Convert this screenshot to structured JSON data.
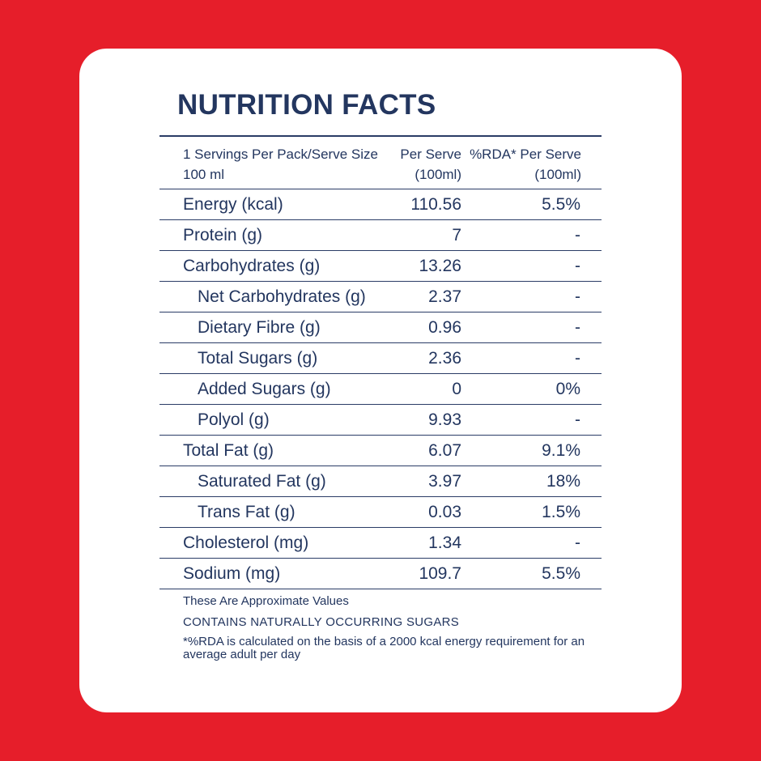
{
  "title": "NUTRITION FACTS",
  "header": {
    "serving": "1 Servings Per Pack/Serve Size 100 ml",
    "per_serve": "Per Serve (100ml)",
    "rda": "%RDA* Per Serve (100ml)"
  },
  "rows": [
    {
      "label": "Energy (kcal)",
      "value": "110.56",
      "rda": "5.5%",
      "indent": false
    },
    {
      "label": "Protein (g)",
      "value": "7",
      "rda": "-",
      "indent": false
    },
    {
      "label": "Carbohydrates (g)",
      "value": "13.26",
      "rda": "-",
      "indent": false
    },
    {
      "label": "Net Carbohydrates (g)",
      "value": "2.37",
      "rda": "-",
      "indent": true
    },
    {
      "label": "Dietary Fibre (g)",
      "value": "0.96",
      "rda": "-",
      "indent": true
    },
    {
      "label": "Total Sugars (g)",
      "value": "2.36",
      "rda": "-",
      "indent": true
    },
    {
      "label": "Added Sugars (g)",
      "value": "0",
      "rda": "0%",
      "indent": true
    },
    {
      "label": "Polyol (g)",
      "value": "9.93",
      "rda": "-",
      "indent": true
    },
    {
      "label": "Total Fat (g)",
      "value": "6.07",
      "rda": "9.1%",
      "indent": false
    },
    {
      "label": "Saturated Fat (g)",
      "value": "3.97",
      "rda": "18%",
      "indent": true
    },
    {
      "label": "Trans Fat (g)",
      "value": "0.03",
      "rda": "1.5%",
      "indent": true
    },
    {
      "label": "Cholesterol (mg)",
      "value": "1.34",
      "rda": "-",
      "indent": false
    },
    {
      "label": "Sodium (mg)",
      "value": "109.7",
      "rda": "5.5%",
      "indent": false
    }
  ],
  "notes": {
    "approx": "These Are Approximate Values",
    "sugars": "CONTAINS NATURALLY OCCURRING SUGARS",
    "rda_note": "*%RDA is calculated on the basis of a 2000 kcal energy requirement for an average adult per day"
  },
  "colors": {
    "background": "#e61e2a",
    "card": "#ffffff",
    "text": "#23365f"
  }
}
